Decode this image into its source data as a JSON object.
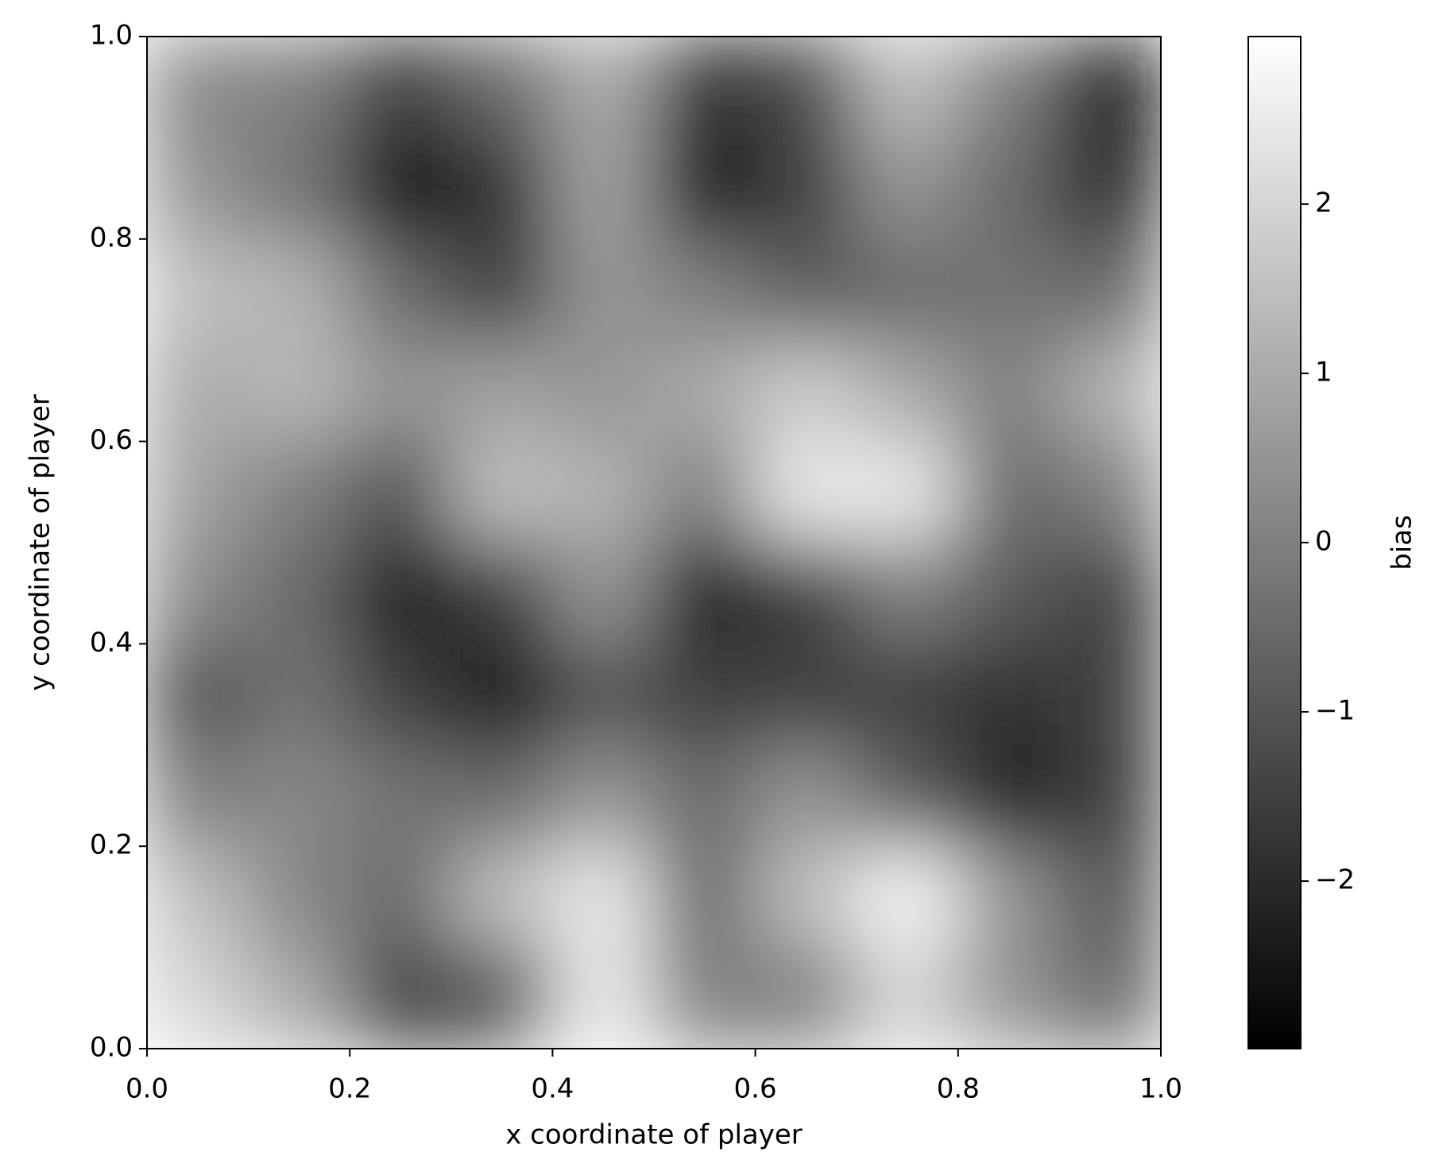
{
  "chart_data": {
    "type": "heatmap",
    "x_label": "x coordinate of player",
    "y_label": "y coordinate of player",
    "colormap": "gray",
    "xlim": [
      0,
      1
    ],
    "ylim": [
      0,
      1
    ],
    "xticks": [
      {
        "value": 0,
        "label": "0.0"
      },
      0.2,
      0.4,
      0.6,
      0.8,
      {
        "value": 1,
        "label": "1.0"
      }
    ],
    "yticks": [
      {
        "value": 0,
        "label": "0.0"
      },
      0.2,
      0.4,
      0.6,
      0.8,
      {
        "value": 1,
        "label": "1.0"
      }
    ],
    "x": [
      0.05,
      0.15,
      0.25,
      0.35,
      0.45,
      0.55,
      0.65,
      0.75,
      0.85,
      0.95
    ],
    "y": [
      0.95,
      0.85,
      0.75,
      0.65,
      0.55,
      0.45,
      0.35,
      0.25,
      0.15,
      0.05
    ],
    "values": [
      [
        0.2,
        0.0,
        -1.5,
        -0.5,
        1.0,
        -1.8,
        -1.2,
        1.5,
        0.0,
        -2.5
      ],
      [
        0.5,
        -0.3,
        -2.8,
        -1.8,
        0.8,
        -2.5,
        -1.5,
        0.5,
        -0.5,
        -2.0
      ],
      [
        1.5,
        1.2,
        -0.5,
        -1.5,
        0.5,
        0.0,
        -0.8,
        -0.5,
        -0.3,
        -0.5
      ],
      [
        1.0,
        1.3,
        0.5,
        0.8,
        0.5,
        1.0,
        1.8,
        1.0,
        0.0,
        1.2
      ],
      [
        0.8,
        0.0,
        -1.0,
        1.5,
        1.2,
        0.0,
        2.5,
        2.5,
        -0.5,
        0.0
      ],
      [
        0.3,
        -0.5,
        -2.3,
        -1.5,
        0.5,
        -2.3,
        -1.5,
        0.0,
        -0.8,
        -1.5
      ],
      [
        -1.0,
        -0.3,
        -1.5,
        -2.5,
        -1.0,
        -1.5,
        -1.5,
        -1.5,
        -1.8,
        -1.5
      ],
      [
        0.0,
        0.2,
        -0.3,
        -0.5,
        0.5,
        -0.5,
        0.5,
        -0.8,
        -2.2,
        -1.5
      ],
      [
        1.5,
        0.2,
        -0.5,
        1.5,
        2.5,
        -0.5,
        1.5,
        2.8,
        0.5,
        -1.0
      ],
      [
        2.0,
        1.0,
        -1.5,
        -1.0,
        2.5,
        0.0,
        0.0,
        2.0,
        0.5,
        -0.5
      ]
    ],
    "colorbar": {
      "label": "bias",
      "lim": [
        -2.99,
        2.99
      ],
      "ticks": [
        {
          "value": -2,
          "label": "−2"
        },
        {
          "value": -1,
          "label": "−1"
        },
        0,
        1,
        2
      ]
    }
  }
}
